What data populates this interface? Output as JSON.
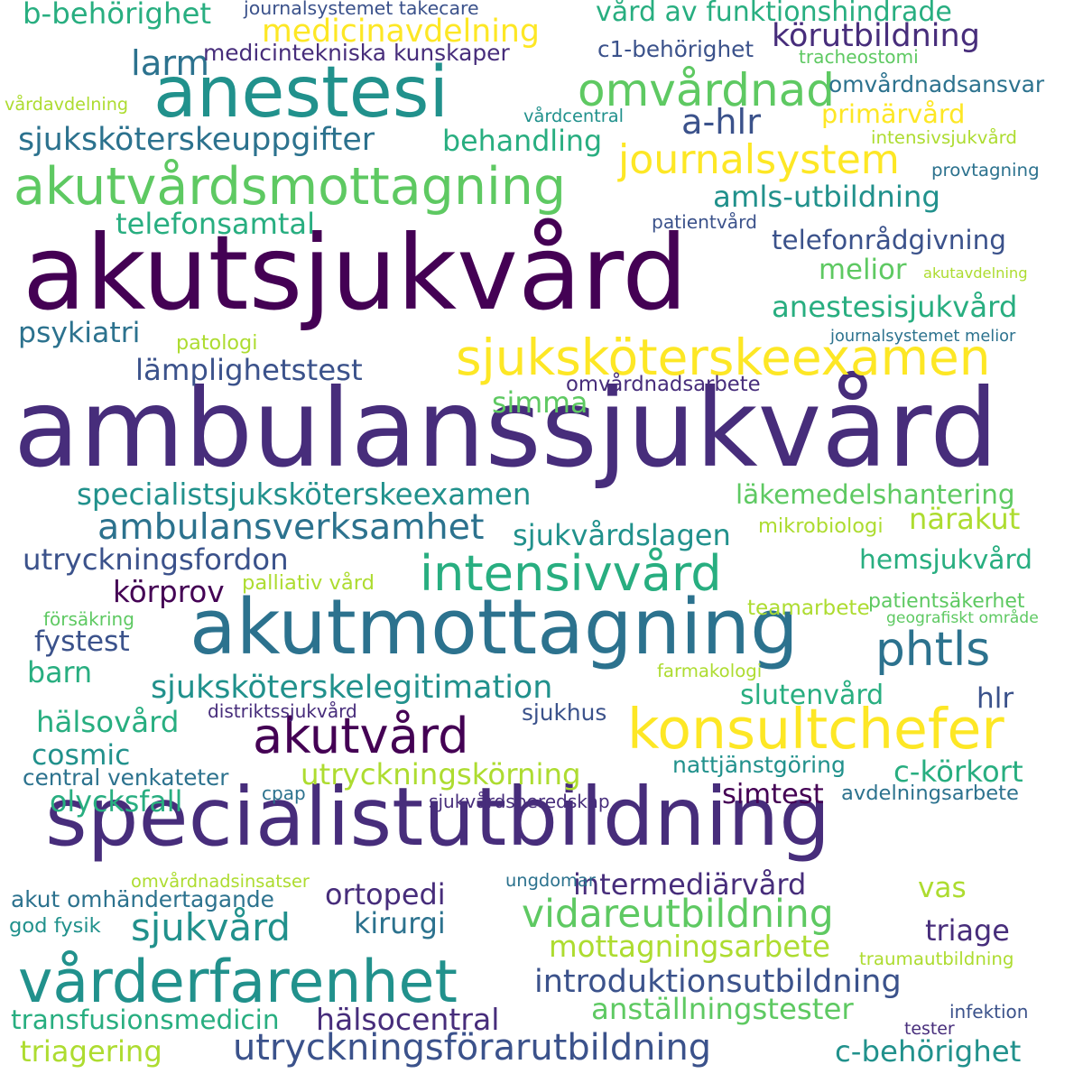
{
  "palette": {
    "p1": "#440154",
    "p2": "#472d7b",
    "p3": "#3b528b",
    "p4": "#2c728e",
    "p5": "#21918c",
    "p6": "#28ae80",
    "p7": "#5ec962",
    "p8": "#addc30",
    "p9": "#fde725"
  },
  "words": [
    {
      "text": "ambulanssjukvård",
      "color": "p2"
    },
    {
      "text": "akutsjukvård",
      "color": "p1"
    },
    {
      "text": "specialistutbildning",
      "color": "p2"
    },
    {
      "text": "akutmottagning",
      "color": "p4"
    },
    {
      "text": "anestesi",
      "color": "p5"
    },
    {
      "text": "vårderfarenhet",
      "color": "p5"
    },
    {
      "text": "akutvårdsmottagning",
      "color": "p7"
    },
    {
      "text": "konsultchefer",
      "color": "p9"
    },
    {
      "text": "sjuksköterskeexamen",
      "color": "p9"
    },
    {
      "text": "intensivvård",
      "color": "p6"
    },
    {
      "text": "akutvård",
      "color": "p1"
    },
    {
      "text": "omvårdnad",
      "color": "p7"
    },
    {
      "text": "journalsystem",
      "color": "p9"
    },
    {
      "text": "phtls",
      "color": "p4"
    },
    {
      "text": "vidareutbildning",
      "color": "p7"
    },
    {
      "text": "sjukvård",
      "color": "p5"
    },
    {
      "text": "utryckningsförarutbildning",
      "color": "p3"
    },
    {
      "text": "sjuksköterskeuppgifter",
      "color": "p4"
    },
    {
      "text": "medicinavdelning",
      "color": "p9"
    },
    {
      "text": "b-behörighet",
      "color": "p6"
    },
    {
      "text": "körutbildning",
      "color": "p2"
    },
    {
      "text": "vård av funktionshindrade",
      "color": "p6"
    },
    {
      "text": "a-hlr",
      "color": "p3"
    },
    {
      "text": "primärvård",
      "color": "p9"
    },
    {
      "text": "behandling",
      "color": "p6"
    },
    {
      "text": "amls-utbildning",
      "color": "p5"
    },
    {
      "text": "telefonsamtal",
      "color": "p6"
    },
    {
      "text": "telefonrådgivning",
      "color": "p3"
    },
    {
      "text": "melior",
      "color": "p7"
    },
    {
      "text": "anestesisjukvård",
      "color": "p6"
    },
    {
      "text": "psykiatri",
      "color": "p4"
    },
    {
      "text": "lämplighetstest",
      "color": "p3"
    },
    {
      "text": "simma",
      "color": "p7"
    },
    {
      "text": "specialistsjuksköterskeexamen",
      "color": "p5"
    },
    {
      "text": "läkemedelshantering",
      "color": "p7"
    },
    {
      "text": "ambulansverksamhet",
      "color": "p4"
    },
    {
      "text": "närakut",
      "color": "p8"
    },
    {
      "text": "sjukvårdslagen",
      "color": "p5"
    },
    {
      "text": "utryckningsfordon",
      "color": "p3"
    },
    {
      "text": "hemsjukvård",
      "color": "p6"
    },
    {
      "text": "körprov",
      "color": "p1"
    },
    {
      "text": "fystest",
      "color": "p3"
    },
    {
      "text": "barn",
      "color": "p6"
    },
    {
      "text": "sjuksköterskelegitimation",
      "color": "p5"
    },
    {
      "text": "slutenvård",
      "color": "p6"
    },
    {
      "text": "hlr",
      "color": "p3"
    },
    {
      "text": "hälsovård",
      "color": "p6"
    },
    {
      "text": "cosmic",
      "color": "p5"
    },
    {
      "text": "utryckningskörning",
      "color": "p8"
    },
    {
      "text": "c-körkort",
      "color": "p6"
    },
    {
      "text": "simtest",
      "color": "p1"
    },
    {
      "text": "olycksfall",
      "color": "p6"
    },
    {
      "text": "ortopedi",
      "color": "p2"
    },
    {
      "text": "intermediärvård",
      "color": "p2"
    },
    {
      "text": "vas",
      "color": "p8"
    },
    {
      "text": "kirurgi",
      "color": "p4"
    },
    {
      "text": "triage",
      "color": "p2"
    },
    {
      "text": "mottagningsarbete",
      "color": "p8"
    },
    {
      "text": "introduktionsutbildning",
      "color": "p3"
    },
    {
      "text": "anställningstester",
      "color": "p7"
    },
    {
      "text": "transfusionsmedicin",
      "color": "p6"
    },
    {
      "text": "hälsocentral",
      "color": "p2"
    },
    {
      "text": "triagering",
      "color": "p8"
    },
    {
      "text": "c-behörighet",
      "color": "p5"
    },
    {
      "text": "larm",
      "color": "p4"
    },
    {
      "text": "medicintekniska kunskaper",
      "color": "p2"
    },
    {
      "text": "c1-behörighet",
      "color": "p3"
    },
    {
      "text": "tracheostomi",
      "color": "p7"
    },
    {
      "text": "omvårdnadsansvar",
      "color": "p4"
    },
    {
      "text": "journalsystemet takecare",
      "color": "p3"
    },
    {
      "text": "vårdavdelning",
      "color": "p8"
    },
    {
      "text": "vårdcentral",
      "color": "p5"
    },
    {
      "text": "intensivsjukvård",
      "color": "p8"
    },
    {
      "text": "provtagning",
      "color": "p4"
    },
    {
      "text": "patientvård",
      "color": "p3"
    },
    {
      "text": "akutavdelning",
      "color": "p8"
    },
    {
      "text": "journalsystemet melior",
      "color": "p4"
    },
    {
      "text": "patologi",
      "color": "p8"
    },
    {
      "text": "omvårdnadsarbete",
      "color": "p2"
    },
    {
      "text": "mikrobiologi",
      "color": "p8"
    },
    {
      "text": "palliativ vård",
      "color": "p8"
    },
    {
      "text": "patientsäkerhet",
      "color": "p7"
    },
    {
      "text": "försäkring",
      "color": "p7"
    },
    {
      "text": "teamarbete",
      "color": "p8"
    },
    {
      "text": "geografiskt område",
      "color": "p7"
    },
    {
      "text": "farmakologi",
      "color": "p8"
    },
    {
      "text": "distriktssjukvård",
      "color": "p2"
    },
    {
      "text": "sjukhus",
      "color": "p3"
    },
    {
      "text": "central venkateter",
      "color": "p4"
    },
    {
      "text": "nattjänstgöring",
      "color": "p5"
    },
    {
      "text": "cpap",
      "color": "p4"
    },
    {
      "text": "sjukvårdsberedskap",
      "color": "p2"
    },
    {
      "text": "avdelningsarbete",
      "color": "p4"
    },
    {
      "text": "omvårdnadsinsatser",
      "color": "p8"
    },
    {
      "text": "ungdomar",
      "color": "p4"
    },
    {
      "text": "akut omhändertagande",
      "color": "p4"
    },
    {
      "text": "god fysik",
      "color": "p5"
    },
    {
      "text": "traumautbildning",
      "color": "p8"
    },
    {
      "text": "infektion",
      "color": "p3"
    },
    {
      "text": "tester",
      "color": "p2"
    }
  ]
}
